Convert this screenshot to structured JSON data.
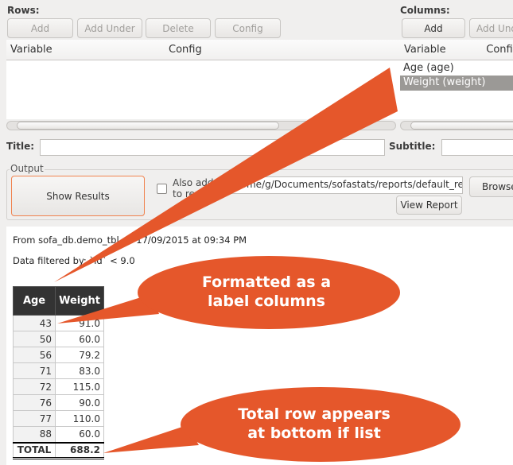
{
  "rows": {
    "label": "Rows:",
    "buttons": [
      "Add",
      "Add Under",
      "Delete",
      "Config"
    ],
    "headers": [
      "Variable",
      "Config"
    ]
  },
  "columns": {
    "label": "Columns:",
    "buttons": [
      "Add",
      "Add Under"
    ],
    "headers": [
      "Variable",
      "Config"
    ],
    "items": [
      "Age (age)",
      "Weight (weight)"
    ],
    "selected": "Weight (weight)"
  },
  "title": {
    "label": "Title:",
    "value": ""
  },
  "subtitle": {
    "label": "Subtitle:",
    "value": ""
  },
  "output": {
    "label": "Output",
    "show_results": "Show Results",
    "also_add": "Also add to report",
    "also_add_checked": false,
    "report_path": "/home/g/Documents/sofastats/reports/default_re",
    "view_report": "View Report",
    "browse": "Browse"
  },
  "report": {
    "source_line": "From sofa_db.demo_tbl on 17/09/2015 at 09:34 PM",
    "filter_line": "Data filtered by: `id` < 9.0",
    "headers": [
      "Age",
      "Weight"
    ],
    "rows": [
      [
        "43",
        "91.0"
      ],
      [
        "50",
        "60.0"
      ],
      [
        "56",
        "79.2"
      ],
      [
        "71",
        "83.0"
      ],
      [
        "72",
        "115.0"
      ],
      [
        "76",
        "90.0"
      ],
      [
        "77",
        "110.0"
      ],
      [
        "88",
        "60.0"
      ]
    ],
    "total": [
      "TOTAL",
      "688.2"
    ]
  },
  "callouts": {
    "color": "#e5572b",
    "first": [
      "Formatted as a",
      "label columns"
    ],
    "second": [
      "Total row appears",
      "at bottom if list"
    ]
  }
}
